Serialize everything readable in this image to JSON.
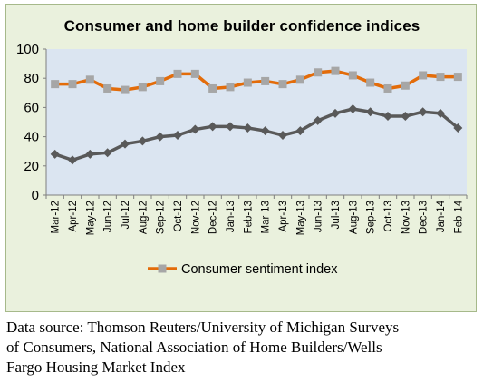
{
  "chart_data": {
    "type": "line",
    "title": "Consumer and home builder confidence indices",
    "categories": [
      "Mar-12",
      "Apr-12",
      "May-12",
      "Jun-12",
      "Jul-12",
      "Aug-12",
      "Sep-12",
      "Oct-12",
      "Nov-12",
      "Dec-12",
      "Jan-13",
      "Feb-13",
      "Mar-13",
      "Apr-13",
      "May-13",
      "Jun-13",
      "Jul-13",
      "Aug-13",
      "Sep-13",
      "Oct-13",
      "Nov-13",
      "Dec-13",
      "Jan-14",
      "Feb-14"
    ],
    "ylim": [
      0,
      100
    ],
    "yticks": [
      0,
      20,
      40,
      60,
      80,
      100
    ],
    "grid": false,
    "legend_position": "bottom",
    "series": [
      {
        "name": "Consumer sentiment index",
        "color": "#e36c0a",
        "marker_color": "#a6a6a6",
        "marker": "square",
        "values": [
          76,
          76,
          79,
          73,
          72,
          74,
          78,
          83,
          83,
          73,
          74,
          77,
          78,
          76,
          79,
          84,
          85,
          82,
          77,
          73,
          75,
          82,
          81,
          81
        ]
      },
      {
        "name": "",
        "color": "#595959",
        "marker_color": "#595959",
        "marker": "diamond",
        "values": [
          28,
          24,
          28,
          29,
          35,
          37,
          40,
          41,
          45,
          47,
          47,
          46,
          44,
          41,
          44,
          51,
          56,
          59,
          57,
          54,
          54,
          57,
          56,
          46
        ]
      }
    ]
  },
  "caption": [
    "Data source: Thomson Reuters/University of Michigan Surveys",
    "of Consumers, National Association of Home Builders/Wells",
    "Fargo Housing Market Index"
  ]
}
